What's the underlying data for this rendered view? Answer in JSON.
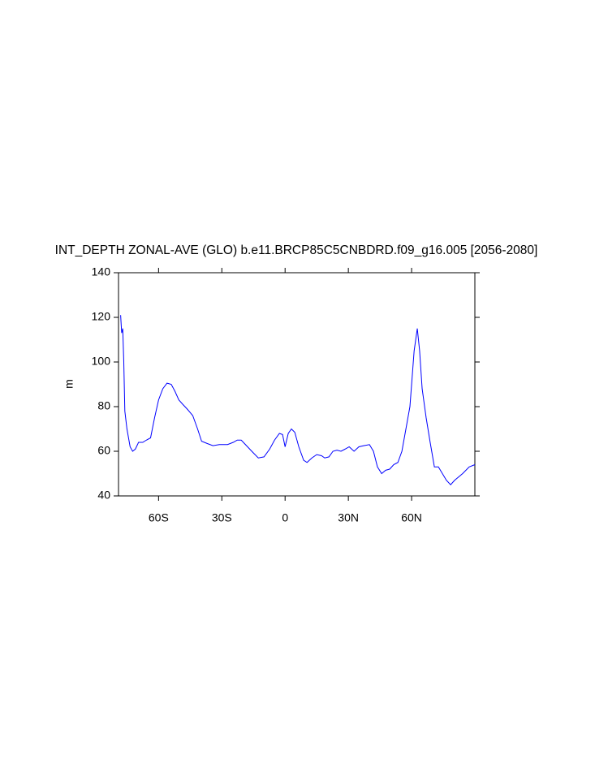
{
  "chart_data": {
    "type": "line",
    "title": "INT_DEPTH ZONAL-AVE (GLO) b.e11.BRCP85C5CNBDRD.f09_g16.005 [2056-2080]",
    "y_label": "m",
    "xlim": [
      -79,
      90
    ],
    "ylim": [
      40,
      140
    ],
    "xticks": [
      {
        "value": -60,
        "label": "60S"
      },
      {
        "value": -30,
        "label": "30S"
      },
      0,
      {
        "value": 30,
        "label": "30N"
      },
      {
        "value": 60,
        "label": "60N"
      }
    ],
    "yticks": [
      40,
      60,
      80,
      100,
      120,
      140
    ],
    "series": [
      {
        "name": "INT_DEPTH",
        "color": "#0000ff",
        "x": [
          -78,
          -77.5,
          -77,
          -76.5,
          -76,
          -75,
          -73.5,
          -72.3,
          -71,
          -69.5,
          -67.5,
          -65.8,
          -63.8,
          -61.9,
          -60,
          -58,
          -56,
          -54,
          -52.3,
          -50.4,
          -48.5,
          -46.5,
          -43.8,
          -41.5,
          -39.6,
          -37,
          -34.2,
          -31.2,
          -27.3,
          -24.6,
          -22.7,
          -20.8,
          -18.8,
          -15.8,
          -12.7,
          -10,
          -7.3,
          -5,
          -2.7,
          -1.2,
          0,
          1.5,
          3,
          4.6,
          6.5,
          8.8,
          10.4,
          12.7,
          15,
          17.3,
          18.8,
          20.8,
          22.7,
          24.6,
          26.5,
          28.5,
          30.4,
          32.7,
          35,
          37.3,
          40,
          41.9,
          43.8,
          45.8,
          47.7,
          49.6,
          51.5,
          53.5,
          55.4,
          57.3,
          59.2,
          61.2,
          62.7,
          63.8,
          65,
          66.9,
          68.8,
          70.8,
          72.7,
          74.6,
          76.5,
          78.5,
          80.4,
          84.2,
          87.3,
          90
        ],
        "values": [
          121,
          113,
          115,
          100,
          78,
          70,
          62,
          60,
          61,
          64,
          64,
          65,
          66,
          75,
          83,
          88,
          90.5,
          90,
          87,
          83,
          81,
          79,
          76,
          70,
          64.5,
          63.5,
          62.5,
          63,
          63,
          64,
          65,
          65,
          63,
          60,
          57,
          57.5,
          61,
          65,
          68,
          67.5,
          62,
          68,
          70,
          68.5,
          62,
          56,
          55,
          57,
          58.5,
          58,
          57,
          57.5,
          60,
          60.5,
          60,
          61,
          62,
          60,
          62,
          62.5,
          63,
          60,
          53,
          50,
          51.5,
          52,
          54,
          55,
          60,
          70,
          80,
          105,
          115,
          105,
          88,
          75,
          64,
          53,
          53,
          50,
          47,
          45,
          47,
          50,
          53,
          54
        ]
      }
    ]
  }
}
